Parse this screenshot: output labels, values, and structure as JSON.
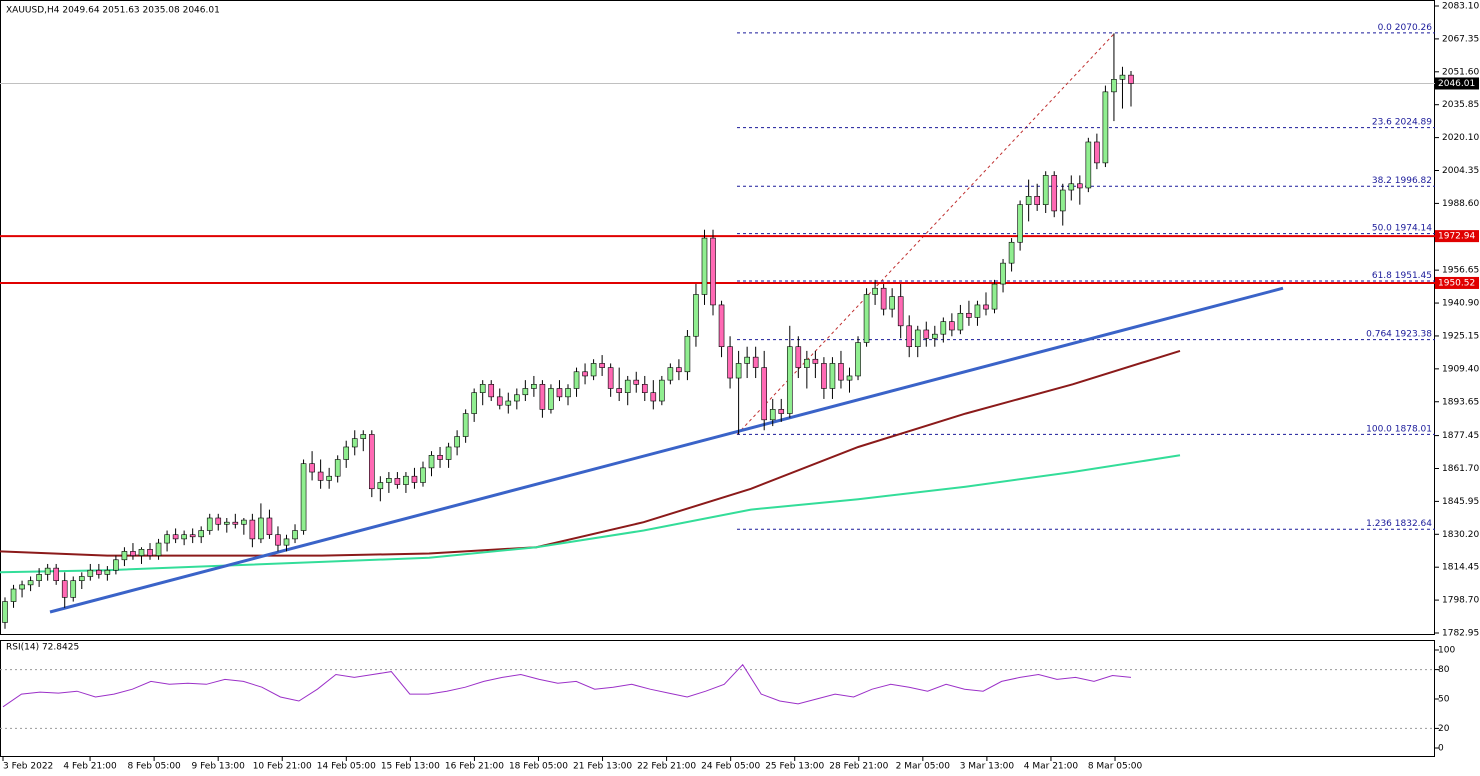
{
  "chart_data": {
    "type": "candlestick",
    "header": "XAUUSD,H4  2049.64 2051.63 2035.08 2046.01",
    "ylim": [
      1782.95,
      2083.1
    ],
    "yticks": [
      {
        "value": 2083.1,
        "label": "2083.10"
      },
      2067.35,
      {
        "value": 2051.6,
        "label": "2051.60"
      },
      2035.85,
      {
        "value": 2020.1,
        "label": "2020.10"
      },
      2004.35,
      {
        "value": 1988.6,
        "label": "1988.60"
      },
      1956.65,
      {
        "value": 1940.9,
        "label": "1940.90"
      },
      1925.15,
      {
        "value": 1909.4,
        "label": "1909.40"
      },
      1893.65,
      1877.45,
      {
        "value": 1861.7,
        "label": "1861.70"
      },
      1845.95,
      {
        "value": 1830.2,
        "label": "1830.20"
      },
      1814.45,
      {
        "value": 1798.7,
        "label": "1798.70"
      },
      1782.95
    ],
    "xticks": [
      "3 Feb 2022",
      "4 Feb 21:00",
      "8 Feb 05:00",
      "9 Feb 13:00",
      "10 Feb 21:00",
      "14 Feb 05:00",
      "15 Feb 13:00",
      "16 Feb 21:00",
      "18 Feb 05:00",
      "21 Feb 13:00",
      "22 Feb 21:00",
      "24 Feb 05:00",
      "25 Feb 13:00",
      "28 Feb 21:00",
      "2 Mar 05:00",
      "3 Mar 13:00",
      "4 Mar 21:00",
      "8 Mar 05:00"
    ],
    "bull_color": "#90ee90",
    "bear_color": "#ff69b4",
    "candles": [
      [
        1788,
        1800,
        1785,
        1798
      ],
      [
        1798,
        1806,
        1795,
        1804
      ],
      [
        1804,
        1808,
        1800,
        1806
      ],
      [
        1806,
        1810,
        1803,
        1808
      ],
      [
        1808,
        1814,
        1805,
        1811
      ],
      [
        1811,
        1816,
        1808,
        1814
      ],
      [
        1814,
        1816,
        1806,
        1808
      ],
      [
        1808,
        1812,
        1795,
        1800
      ],
      [
        1800,
        1810,
        1798,
        1808
      ],
      [
        1808,
        1812,
        1804,
        1810
      ],
      [
        1810,
        1816,
        1808,
        1813
      ],
      [
        1813,
        1816,
        1809,
        1811
      ],
      [
        1811,
        1815,
        1808,
        1813
      ],
      [
        1813,
        1820,
        1811,
        1818
      ],
      [
        1818,
        1824,
        1815,
        1822
      ],
      [
        1822,
        1826,
        1818,
        1820
      ],
      [
        1820,
        1824,
        1816,
        1823
      ],
      [
        1823,
        1826,
        1818,
        1820
      ],
      [
        1820,
        1828,
        1818,
        1826
      ],
      [
        1826,
        1832,
        1822,
        1830
      ],
      [
        1830,
        1833,
        1826,
        1828
      ],
      [
        1828,
        1832,
        1825,
        1830
      ],
      [
        1830,
        1833,
        1826,
        1829
      ],
      [
        1829,
        1834,
        1826,
        1832
      ],
      [
        1832,
        1840,
        1830,
        1838
      ],
      [
        1838,
        1840,
        1832,
        1835
      ],
      [
        1835,
        1838,
        1831,
        1836
      ],
      [
        1836,
        1840,
        1833,
        1835
      ],
      [
        1835,
        1838,
        1830,
        1837
      ],
      [
        1837,
        1840,
        1824,
        1828
      ],
      [
        1828,
        1845,
        1826,
        1838
      ],
      [
        1838,
        1842,
        1828,
        1830
      ],
      [
        1830,
        1834,
        1822,
        1825
      ],
      [
        1825,
        1830,
        1822,
        1828
      ],
      [
        1828,
        1835,
        1826,
        1832
      ],
      [
        1832,
        1866,
        1830,
        1864
      ],
      [
        1864,
        1870,
        1856,
        1860
      ],
      [
        1860,
        1866,
        1852,
        1856
      ],
      [
        1856,
        1862,
        1852,
        1858
      ],
      [
        1858,
        1868,
        1855,
        1866
      ],
      [
        1866,
        1875,
        1862,
        1872
      ],
      [
        1872,
        1880,
        1868,
        1876
      ],
      [
        1876,
        1880,
        1870,
        1878
      ],
      [
        1878,
        1880,
        1848,
        1852
      ],
      [
        1852,
        1858,
        1846,
        1855
      ],
      [
        1855,
        1860,
        1850,
        1857
      ],
      [
        1857,
        1860,
        1852,
        1854
      ],
      [
        1854,
        1860,
        1850,
        1858
      ],
      [
        1858,
        1862,
        1852,
        1855
      ],
      [
        1855,
        1865,
        1853,
        1862
      ],
      [
        1862,
        1870,
        1858,
        1868
      ],
      [
        1868,
        1872,
        1862,
        1866
      ],
      [
        1866,
        1874,
        1862,
        1872
      ],
      [
        1872,
        1880,
        1868,
        1877
      ],
      [
        1877,
        1890,
        1874,
        1888
      ],
      [
        1888,
        1900,
        1884,
        1898
      ],
      [
        1898,
        1904,
        1892,
        1902
      ],
      [
        1902,
        1904,
        1894,
        1896
      ],
      [
        1896,
        1900,
        1890,
        1892
      ],
      [
        1892,
        1898,
        1888,
        1894
      ],
      [
        1894,
        1900,
        1890,
        1897
      ],
      [
        1897,
        1904,
        1894,
        1900
      ],
      [
        1900,
        1906,
        1896,
        1902
      ],
      [
        1902,
        1904,
        1886,
        1890
      ],
      [
        1890,
        1902,
        1888,
        1900
      ],
      [
        1900,
        1904,
        1894,
        1896
      ],
      [
        1896,
        1902,
        1892,
        1900
      ],
      [
        1900,
        1910,
        1896,
        1908
      ],
      [
        1908,
        1912,
        1902,
        1906
      ],
      [
        1906,
        1914,
        1904,
        1912
      ],
      [
        1912,
        1916,
        1906,
        1910
      ],
      [
        1910,
        1912,
        1896,
        1900
      ],
      [
        1900,
        1910,
        1894,
        1898
      ],
      [
        1898,
        1906,
        1892,
        1904
      ],
      [
        1904,
        1908,
        1898,
        1902
      ],
      [
        1902,
        1906,
        1894,
        1898
      ],
      [
        1898,
        1904,
        1890,
        1894
      ],
      [
        1894,
        1906,
        1892,
        1904
      ],
      [
        1904,
        1912,
        1902,
        1910
      ],
      [
        1910,
        1914,
        1904,
        1908
      ],
      [
        1908,
        1928,
        1904,
        1925
      ],
      [
        1925,
        1950,
        1920,
        1945
      ],
      [
        1945,
        1976,
        1940,
        1972
      ],
      [
        1972,
        1976,
        1935,
        1940
      ],
      [
        1940,
        1942,
        1915,
        1920
      ],
      [
        1920,
        1925,
        1900,
        1905
      ],
      [
        1905,
        1918,
        1878,
        1912
      ],
      [
        1912,
        1920,
        1905,
        1915
      ],
      [
        1915,
        1920,
        1905,
        1910
      ],
      [
        1910,
        1918,
        1880,
        1885
      ],
      [
        1885,
        1895,
        1882,
        1890
      ],
      [
        1890,
        1895,
        1884,
        1888
      ],
      [
        1888,
        1930,
        1886,
        1920
      ],
      [
        1920,
        1925,
        1905,
        1910
      ],
      [
        1910,
        1918,
        1900,
        1914
      ],
      [
        1914,
        1918,
        1905,
        1912
      ],
      [
        1912,
        1915,
        1895,
        1900
      ],
      [
        1900,
        1915,
        1895,
        1912
      ],
      [
        1912,
        1918,
        1900,
        1904
      ],
      [
        1904,
        1910,
        1898,
        1906
      ],
      [
        1906,
        1925,
        1904,
        1922
      ],
      [
        1922,
        1948,
        1920,
        1945
      ],
      [
        1945,
        1952,
        1940,
        1948
      ],
      [
        1948,
        1950,
        1935,
        1938
      ],
      [
        1938,
        1948,
        1934,
        1944
      ],
      [
        1944,
        1950,
        1924,
        1930
      ],
      [
        1930,
        1935,
        1915,
        1920
      ],
      [
        1920,
        1930,
        1915,
        1928
      ],
      [
        1928,
        1932,
        1920,
        1924
      ],
      [
        1924,
        1930,
        1920,
        1926
      ],
      [
        1926,
        1934,
        1922,
        1932
      ],
      [
        1932,
        1936,
        1925,
        1928
      ],
      [
        1928,
        1940,
        1926,
        1936
      ],
      [
        1936,
        1942,
        1930,
        1934
      ],
      [
        1934,
        1942,
        1930,
        1940
      ],
      [
        1940,
        1946,
        1935,
        1938
      ],
      [
        1938,
        1952,
        1936,
        1950
      ],
      [
        1950,
        1962,
        1946,
        1960
      ],
      [
        1960,
        1972,
        1956,
        1970
      ],
      [
        1970,
        1990,
        1966,
        1988
      ],
      [
        1988,
        2000,
        1980,
        1992
      ],
      [
        1992,
        1998,
        1985,
        1988
      ],
      [
        1988,
        2004,
        1984,
        2002
      ],
      [
        2002,
        2004,
        1982,
        1985
      ],
      [
        1985,
        1998,
        1978,
        1995
      ],
      [
        1995,
        2002,
        1990,
        1998
      ],
      [
        1998,
        2002,
        1988,
        1996
      ],
      [
        1996,
        2020,
        1994,
        2018
      ],
      [
        2018,
        2022,
        2005,
        2008
      ],
      [
        2008,
        2045,
        2006,
        2042
      ],
      [
        2042,
        2070,
        2028,
        2048
      ],
      [
        2048,
        2054,
        2034,
        2050
      ],
      [
        2050,
        2052,
        2035,
        2046
      ]
    ],
    "moving_averages": [
      {
        "color": "#8b1a1a",
        "values": [
          1822,
          1820,
          1820,
          1820,
          1821,
          1824,
          1836,
          1852,
          1872,
          1888,
          1902,
          1918
        ]
      },
      {
        "color": "#33dd99",
        "values": [
          1812,
          1813,
          1815,
          1817,
          1819,
          1824,
          1832,
          1842,
          1847,
          1853,
          1860,
          1868
        ]
      }
    ],
    "trendline": {
      "color": "#3a63c8",
      "start": 1793,
      "end": 1948
    },
    "resistance": [
      1972.94,
      1950.52
    ],
    "resistance_color": "#e00000",
    "current_price": 2046.01,
    "fib": [
      {
        "level": "0.0",
        "price": 2070.26
      },
      {
        "level": 23.6,
        "price": 2024.89
      },
      {
        "level": 38.2,
        "price": 1996.82
      },
      {
        "level": "50.0",
        "price": 1974.14
      },
      {
        "level": 61.8,
        "price": 1951.45
      },
      {
        "level": 0.764,
        "price": 1923.38
      },
      {
        "level": "100.0",
        "price": 1878.01
      },
      {
        "level": 1.236,
        "price": 1832.64
      }
    ],
    "rsi": {
      "title": "RSI(14) 72.8425",
      "color": "#9b30c8",
      "ylim": [
        0,
        100
      ],
      "yticks": [
        100,
        80,
        50,
        20,
        0
      ],
      "levels": [
        80,
        20
      ],
      "values": [
        42,
        55,
        57,
        56,
        58,
        52,
        55,
        60,
        68,
        65,
        66,
        65,
        70,
        68,
        62,
        52,
        48,
        60,
        75,
        72,
        75,
        78,
        55,
        55,
        58,
        62,
        68,
        72,
        75,
        70,
        66,
        68,
        60,
        62,
        65,
        60,
        56,
        52,
        58,
        65,
        85,
        55,
        48,
        45,
        50,
        55,
        52,
        60,
        65,
        62,
        58,
        65,
        60,
        58,
        68,
        72,
        75,
        70,
        72,
        68,
        74,
        72
      ]
    }
  }
}
